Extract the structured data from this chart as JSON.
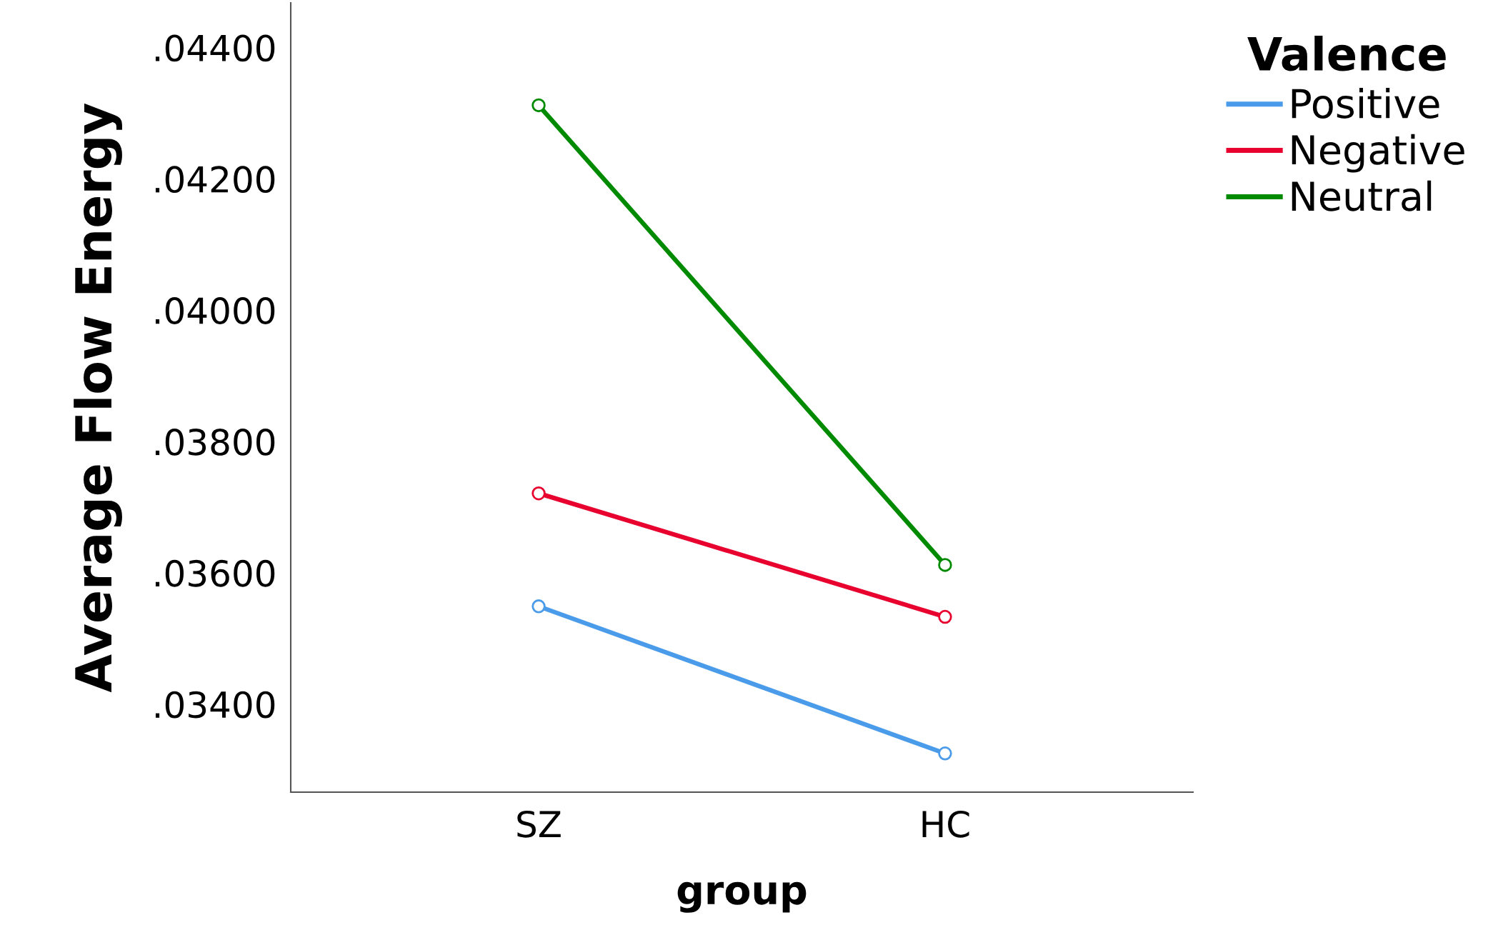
{
  "chart_data": {
    "type": "line",
    "xlabel": "group",
    "ylabel": "Average Flow Energy",
    "legend_title": "Valence",
    "categories": [
      "SZ",
      "HC"
    ],
    "series": [
      {
        "name": "Positive",
        "color": "#4a9bea",
        "values": [
          0.03549,
          0.03325
        ]
      },
      {
        "name": "Negative",
        "color": "#e8002f",
        "values": [
          0.03721,
          0.03533
        ]
      },
      {
        "name": "Neutral",
        "color": "#008a00",
        "values": [
          0.04312,
          0.03612
        ]
      }
    ],
    "ylim": [
      0.03266,
      0.04468
    ],
    "yticks": [
      {
        "value": 0.034,
        "label": ".03400"
      },
      {
        "value": 0.036,
        "label": ".03600"
      },
      {
        "value": 0.038,
        "label": ".03800"
      },
      {
        "value": 0.04,
        "label": ".04000"
      },
      {
        "value": 0.042,
        "label": ".04200"
      },
      {
        "value": 0.044,
        "label": ".04400"
      }
    ],
    "marker": "circle",
    "line_style": "solid",
    "grid": false,
    "legend": "top right"
  }
}
